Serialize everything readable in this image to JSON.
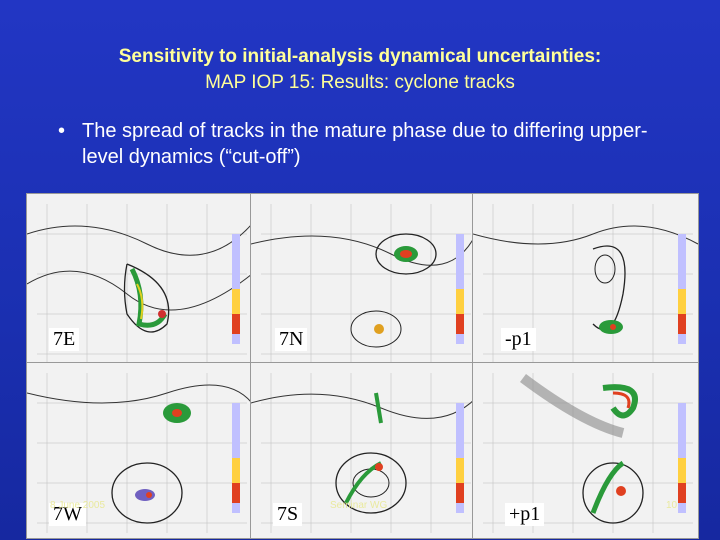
{
  "title": {
    "line1": "Sensitivity to initial-analysis dynamical uncertainties:",
    "line2": "MAP IOP 15: Results: cyclone tracks"
  },
  "bullet": {
    "symbol": "•",
    "text": "The spread of tracks in the mature phase due to differing upper-level dynamics (“cut-off”)"
  },
  "panels": [
    {
      "label": "7E"
    },
    {
      "label": "7N"
    },
    {
      "label": "-p1"
    },
    {
      "label": "7W"
    },
    {
      "label": "7S"
    },
    {
      "label": "+p1"
    }
  ],
  "footer": {
    "left": "8 June 2005",
    "center": "Seminar WG",
    "page": "10"
  },
  "colors": {
    "background": "#1a2fb0",
    "title": "#ffff99",
    "bullet": "#ffffff"
  }
}
